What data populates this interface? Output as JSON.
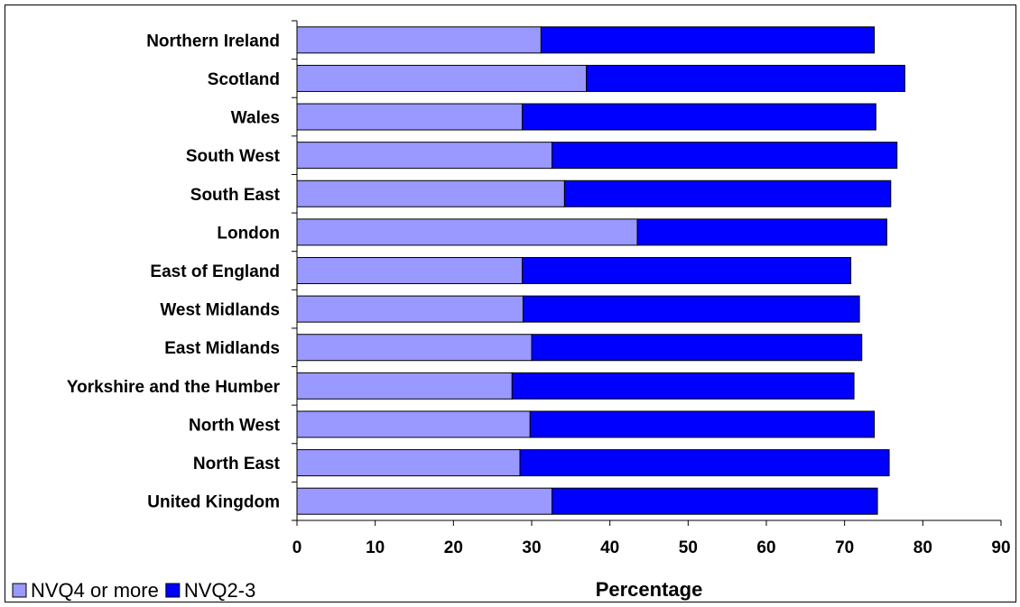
{
  "chart_data": {
    "type": "bar",
    "orientation": "horizontal",
    "stacked": true,
    "categories": [
      "United Kingdom",
      "North East",
      "North West",
      "Yorkshire and the Humber",
      "East Midlands",
      "West Midlands",
      "East of England",
      "London",
      "South East",
      "South West",
      "Wales",
      "Scotland",
      "Northern Ireland"
    ],
    "series": [
      {
        "name": "NVQ4 or more",
        "color": "#9999ff",
        "values": [
          32.6,
          28.5,
          29.8,
          27.5,
          30.0,
          28.9,
          28.8,
          43.5,
          34.2,
          32.6,
          28.8,
          37.0,
          31.2
        ]
      },
      {
        "name": "NVQ2-3",
        "color": "#0000ff",
        "values": [
          41.6,
          47.2,
          44.0,
          43.7,
          42.2,
          43.0,
          42.0,
          31.9,
          41.7,
          44.1,
          45.2,
          40.7,
          42.6
        ]
      }
    ],
    "xlabel": "Percentage",
    "ylabel": "",
    "xlim": [
      0,
      90
    ],
    "xticks": [
      "0",
      "10",
      "20",
      "30",
      "40",
      "50",
      "60",
      "70",
      "80",
      "90"
    ],
    "grid": false,
    "legend_position": "bottom-left"
  }
}
